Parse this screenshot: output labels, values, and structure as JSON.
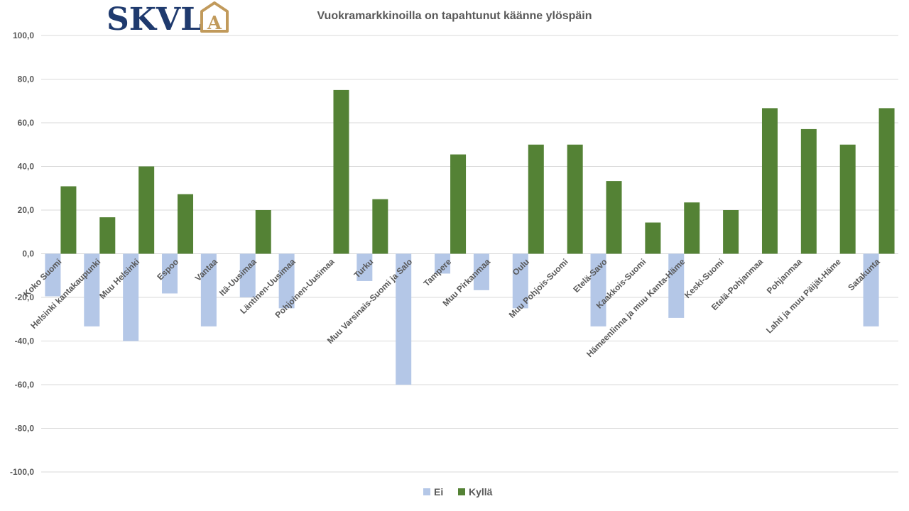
{
  "logo": {
    "text": "SKVL",
    "badge": "A",
    "text_color": "#1f3a6e",
    "badge_color": "#c19a5b"
  },
  "chart_data": {
    "type": "bar",
    "title": "Vuokramarkkinoilla on tapahtunut käänne ylöspäin",
    "xlabel": "",
    "ylabel": "",
    "ylim": [
      -100,
      100
    ],
    "yticks": [
      -100,
      -80,
      -60,
      -40,
      -20,
      0,
      20,
      40,
      60,
      80,
      100
    ],
    "ytick_labels": [
      "-100,0",
      "-80,0",
      "-60,0",
      "-40,0",
      "-20,0",
      "0,0",
      "20,0",
      "40,0",
      "60,0",
      "80,0",
      "100,0"
    ],
    "grid": true,
    "legend_position": "bottom",
    "categories": [
      "Koko Suomi",
      "Helsinki kantakaupunki",
      "Muu Helsinki",
      "Espoo",
      "Vantaa",
      "Itä-Uusimaa",
      "Läntinen-Uusimaa",
      "Pohjoinen-Uusimaa",
      "Turku",
      "Muu Varsinais-Suomi ja Salo",
      "Tampere",
      "Muu Pirkanmaa",
      "Oulu",
      "Muu Pohjois-Suomi",
      "Etelä-Savo",
      "Kaakkois-Suomi",
      "Hämeenlinna ja muu Kanta-Häme",
      "Keski-Suomi",
      "Etelä-Pohjanmaa",
      "Pohjanmaa",
      "Lahti ja muu Päijät-Häme",
      "Satakunta"
    ],
    "series": [
      {
        "name": "Ei",
        "color": "#b4c7e7",
        "values": [
          -19.5,
          -33.3,
          -40.0,
          -18.2,
          -33.3,
          -20.0,
          -25.0,
          0,
          -12.5,
          -60.0,
          -9.1,
          -16.7,
          -25.0,
          0,
          -33.3,
          0,
          -29.4,
          0,
          0,
          0,
          0,
          -33.3
        ]
      },
      {
        "name": "Kyllä",
        "color": "#548235",
        "values": [
          30.9,
          16.7,
          40.0,
          27.3,
          0,
          20.0,
          0,
          75.0,
          25.0,
          0,
          45.5,
          0,
          50.0,
          50.0,
          33.3,
          14.3,
          23.5,
          20.0,
          66.7,
          57.1,
          50.0,
          66.7
        ]
      }
    ]
  }
}
